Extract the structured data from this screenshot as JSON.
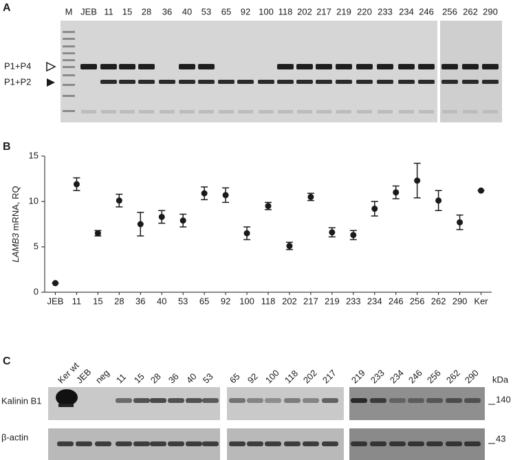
{
  "panel_a": {
    "label": "A",
    "lanes": [
      "M",
      "JEB",
      "11",
      "15",
      "28",
      "36",
      "40",
      "53",
      "65",
      "92",
      "100",
      "118",
      "202",
      "217",
      "219",
      "220",
      "233",
      "234",
      "246",
      "256",
      "262",
      "290"
    ],
    "bands": [
      "P1+P4",
      "P1+P2"
    ]
  },
  "chart_data": {
    "type": "scatter",
    "panel_label": "B",
    "ylabel": [
      "LAMB3",
      "mRNA, RQ"
    ],
    "categories": [
      "JEB",
      "11",
      "15",
      "28",
      "36",
      "40",
      "53",
      "65",
      "92",
      "100",
      "118",
      "202",
      "217",
      "219",
      "233",
      "234",
      "246",
      "256",
      "262",
      "290",
      "Ker"
    ],
    "values": [
      1.0,
      11.9,
      6.5,
      10.1,
      7.5,
      8.3,
      7.9,
      10.9,
      10.7,
      6.5,
      9.5,
      5.1,
      10.5,
      6.6,
      6.3,
      9.2,
      11.0,
      12.3,
      10.1,
      7.7,
      11.2
    ],
    "errors": [
      0,
      0.7,
      0.3,
      0.7,
      1.3,
      0.7,
      0.7,
      0.7,
      0.8,
      0.7,
      0.4,
      0.4,
      0.4,
      0.5,
      0.5,
      0.8,
      0.7,
      1.9,
      1.1,
      0.8,
      0
    ],
    "color": "#1a1a1a",
    "ylim": [
      0,
      15
    ],
    "yticks": [
      0,
      5,
      10,
      15
    ]
  },
  "panel_c": {
    "label": "C",
    "lanes": [
      [
        "Ker wt",
        "JEB",
        "neg",
        "11",
        "15",
        "28",
        "36",
        "40",
        "53"
      ],
      [
        "65",
        "92",
        "100",
        "118",
        "202",
        "217"
      ],
      [
        "219",
        "233",
        "234",
        "246",
        "256",
        "262",
        "290"
      ]
    ],
    "rows": [
      "Kalinin B1",
      "β-actin"
    ],
    "unit": "kDa",
    "markers": [
      "140",
      "43"
    ]
  }
}
